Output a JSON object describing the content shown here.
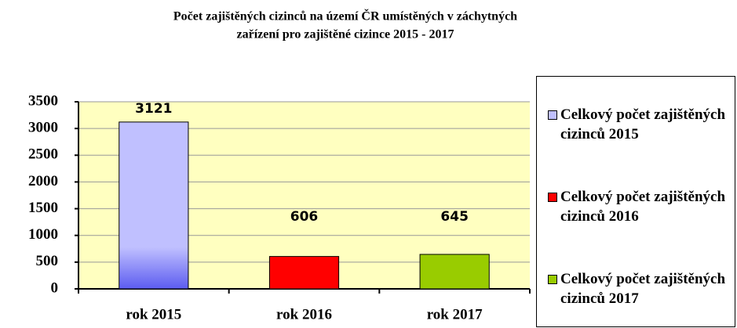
{
  "chart_data": {
    "type": "bar",
    "title": [
      "Počet zajištěných cizinců na území ČR umístěných v záchytných",
      "zařízení pro zajištěné cizince 2015 - 2017"
    ],
    "categories": [
      "rok 2015",
      "rok 2016",
      "rok 2017"
    ],
    "series": [
      {
        "name": "Celkový počet zajištěných cizinců 2015",
        "color": "#c0c0ff",
        "values": [
          3121,
          null,
          null
        ]
      },
      {
        "name": "Celkový počet zajištěných cizinců 2016",
        "color": "#ff0000",
        "values": [
          null,
          606,
          null
        ]
      },
      {
        "name": "Celkový počet zajištěných cizinců 2017",
        "color": "#99cc00",
        "values": [
          null,
          null,
          645
        ]
      }
    ],
    "ylim": [
      0,
      3500
    ],
    "yticks": [
      0,
      500,
      1000,
      1500,
      2000,
      2500,
      3000,
      3500
    ],
    "grid": true,
    "legend": "right",
    "background": "#ffffc0"
  }
}
